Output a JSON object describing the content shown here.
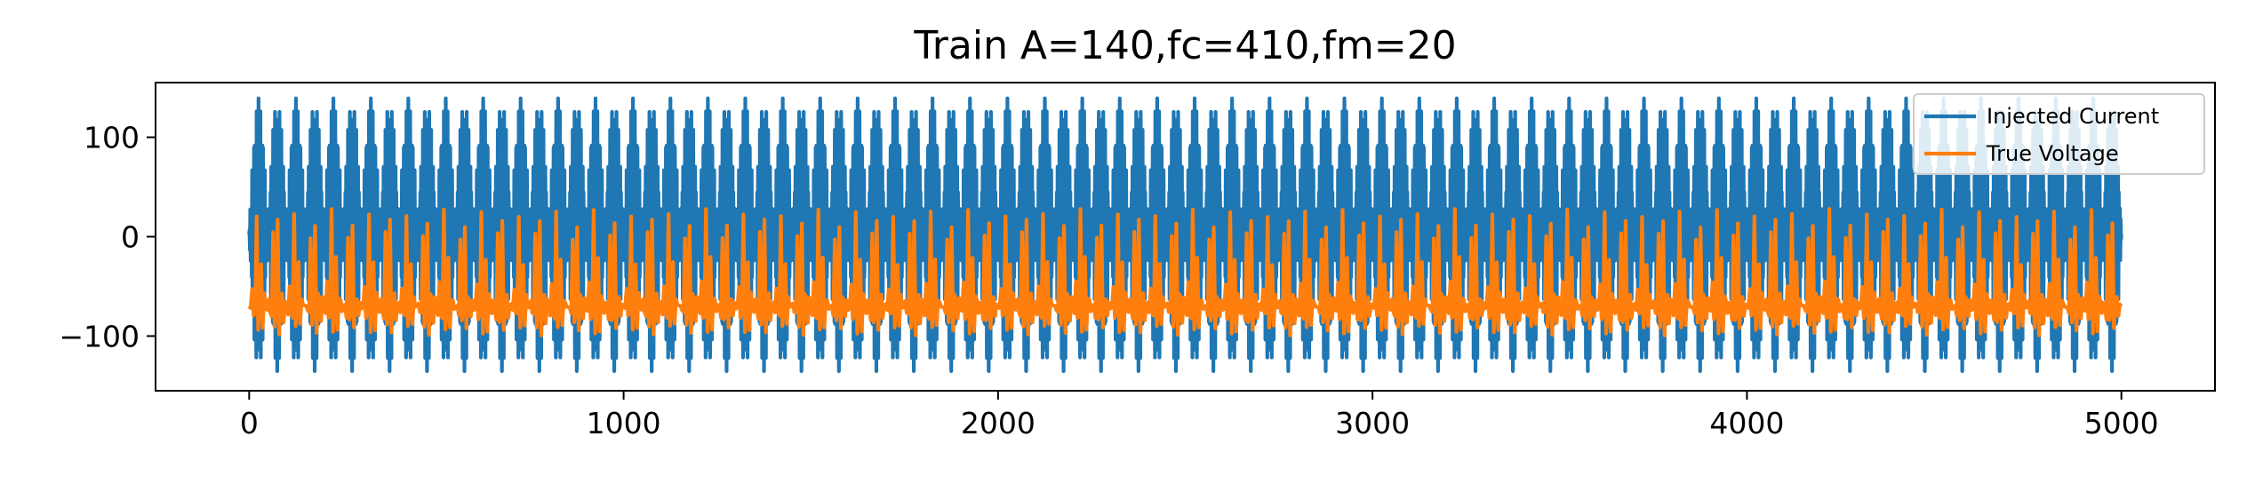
{
  "chart_data": {
    "type": "line",
    "title": "Train A=140,fc=410,fm=20",
    "xlabel": "",
    "ylabel": "",
    "xlim": [
      -250,
      5250
    ],
    "ylim": [
      -155,
      155
    ],
    "x_ticks": [
      0,
      1000,
      2000,
      3000,
      4000,
      5000
    ],
    "x_tick_labels": [
      "0",
      "1000",
      "2000",
      "3000",
      "4000",
      "5000"
    ],
    "y_ticks": [
      100,
      0,
      -100
    ],
    "y_tick_labels": [
      "100",
      "0",
      "−100"
    ],
    "grid": false,
    "legend_position": "top-right",
    "x_range": [
      0,
      5000
    ],
    "series": [
      {
        "name": "Injected Current",
        "color": "#1f77b4",
        "description_waveform": "amplitude-modulated sine",
        "amplitude": 140,
        "carrier_frequency": 410,
        "modulation_frequency": 20
      },
      {
        "name": "True Voltage",
        "color": "#ff7f0e",
        "baseline": -70,
        "max": 40,
        "min": -100
      }
    ]
  }
}
